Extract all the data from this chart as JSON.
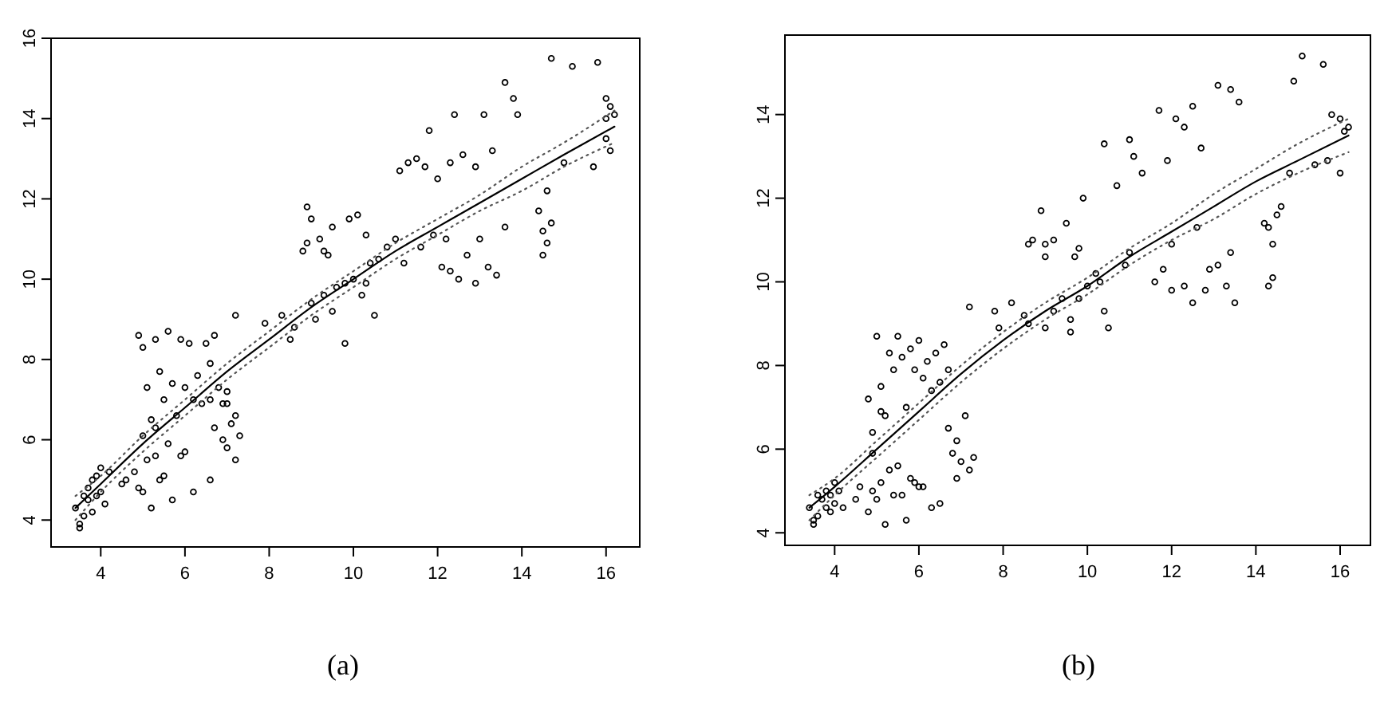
{
  "chart_data": [
    {
      "type": "scatter",
      "xlim": [
        2.82,
        16.8
      ],
      "ylim": [
        3.33,
        16.0
      ],
      "xticks": [
        4,
        6,
        8,
        10,
        12,
        14,
        16
      ],
      "yticks": [
        4,
        6,
        8,
        10,
        12,
        14,
        16
      ],
      "marker": "circle",
      "annotations": [
        "(a)"
      ],
      "series": [
        {
          "color": "#000000",
          "x": [
            3.4,
            3.5,
            3.5,
            3.6,
            3.7,
            3.7,
            3.8,
            3.8,
            3.9,
            3.9,
            4.0,
            4.0,
            4.1,
            4.2,
            3.6,
            4.5,
            4.6,
            4.8,
            4.9,
            5.0,
            5.1,
            5.2,
            5.3,
            5.4,
            5.5,
            5.6,
            5.7,
            5.9,
            6.0,
            6.2,
            6.6,
            4.9,
            5.0,
            5.1,
            5.2,
            5.3,
            5.4,
            5.5,
            5.6,
            5.7,
            5.8,
            5.9,
            6.0,
            6.1,
            6.2,
            6.3,
            6.4,
            6.5,
            6.6,
            6.7,
            6.8,
            6.9,
            7.0,
            5.0,
            5.3,
            6.6,
            6.7,
            6.9,
            7.0,
            7.1,
            7.2,
            7.3,
            7.0,
            7.2,
            7.2,
            7.9,
            8.3,
            8.6,
            8.5,
            8.8,
            8.9,
            9.0,
            9.2,
            9.3,
            9.5,
            8.9,
            9.4,
            9.0,
            9.1,
            9.3,
            9.5,
            9.6,
            9.8,
            10.0,
            10.2,
            10.3,
            10.4,
            9.8,
            10.5,
            9.9,
            10.1,
            10.3,
            10.6,
            10.8,
            11.0,
            11.2,
            11.1,
            11.3,
            11.5,
            11.7,
            11.8,
            12.0,
            11.6,
            11.9,
            12.1,
            12.3,
            12.5,
            12.7,
            13.0,
            13.2,
            13.4,
            13.6,
            12.2,
            12.9,
            12.3,
            12.6,
            12.9,
            13.1,
            13.3,
            13.6,
            13.8,
            13.9,
            12.4,
            14.4,
            14.5,
            14.5,
            14.6,
            14.7,
            14.6,
            14.7,
            15.2,
            15.8,
            16.0,
            16.1,
            16.2,
            16.0,
            16.1,
            15.7,
            15.0,
            16.0
          ],
          "values": [
            4.3,
            3.9,
            3.8,
            4.1,
            4.5,
            4.8,
            5.0,
            4.2,
            5.1,
            4.6,
            5.3,
            4.7,
            4.4,
            5.2,
            4.6,
            4.9,
            5.0,
            5.2,
            4.8,
            4.7,
            5.5,
            4.3,
            5.6,
            5.0,
            5.1,
            5.9,
            4.5,
            5.6,
            5.7,
            4.7,
            5.0,
            8.6,
            8.3,
            7.3,
            6.5,
            8.5,
            7.7,
            7.0,
            8.7,
            7.4,
            6.6,
            8.5,
            7.3,
            8.4,
            7.0,
            7.6,
            6.9,
            8.4,
            7.9,
            8.6,
            7.3,
            6.9,
            7.2,
            6.1,
            6.3,
            7.0,
            6.3,
            6.0,
            5.8,
            6.4,
            5.5,
            6.1,
            6.9,
            6.6,
            9.1,
            8.9,
            9.1,
            8.8,
            8.5,
            10.7,
            11.8,
            11.5,
            11.0,
            10.7,
            11.3,
            10.9,
            10.6,
            9.4,
            9.0,
            9.6,
            9.2,
            9.8,
            9.9,
            10.0,
            9.6,
            9.9,
            10.4,
            8.4,
            9.1,
            11.5,
            11.6,
            11.1,
            10.5,
            10.8,
            11.0,
            10.4,
            12.7,
            12.9,
            13.0,
            12.8,
            13.7,
            12.5,
            10.8,
            11.1,
            10.3,
            10.2,
            10.0,
            10.6,
            11.0,
            10.3,
            10.1,
            11.3,
            11.0,
            9.9,
            12.9,
            13.1,
            12.8,
            14.1,
            13.2,
            14.9,
            14.5,
            14.1,
            14.1,
            11.7,
            11.2,
            10.6,
            10.9,
            11.4,
            12.2,
            15.5,
            15.3,
            15.4,
            14.5,
            14.3,
            14.1,
            14.0,
            13.2,
            12.8,
            12.9,
            13.5
          ]
        },
        {
          "type": "line",
          "color": "#000000",
          "line_style": "solid",
          "marker": "none",
          "x": [
            3.4,
            4,
            5,
            6,
            7,
            8,
            9,
            10,
            11,
            12,
            13,
            14,
            15,
            16.2
          ],
          "values": [
            4.3,
            4.9,
            5.9,
            6.8,
            7.7,
            8.5,
            9.3,
            10.0,
            10.7,
            11.3,
            11.9,
            12.5,
            13.1,
            13.8
          ]
        },
        {
          "type": "line",
          "color": "#555555",
          "line_style": "dotted",
          "marker": "none",
          "x": [
            3.4,
            4,
            5,
            6,
            7,
            8,
            9,
            10,
            11,
            12,
            13,
            14,
            15,
            16.2
          ],
          "values": [
            4.0,
            4.7,
            5.7,
            6.6,
            7.5,
            8.3,
            9.1,
            9.8,
            10.5,
            11.1,
            11.7,
            12.2,
            12.8,
            13.4
          ]
        },
        {
          "type": "line",
          "color": "#555555",
          "line_style": "dotted",
          "marker": "none",
          "x": [
            3.4,
            4,
            5,
            6,
            7,
            8,
            9,
            10,
            11,
            12,
            13,
            14,
            15,
            16.2
          ],
          "values": [
            4.6,
            5.1,
            6.1,
            7.0,
            7.9,
            8.7,
            9.5,
            10.2,
            10.9,
            11.5,
            12.1,
            12.8,
            13.4,
            14.2
          ]
        }
      ]
    },
    {
      "type": "scatter",
      "xlim": [
        2.82,
        16.72
      ],
      "ylim": [
        3.7,
        15.9
      ],
      "xticks": [
        4,
        6,
        8,
        10,
        12,
        14,
        16
      ],
      "yticks": [
        4,
        6,
        8,
        10,
        12,
        14
      ],
      "marker": "circle",
      "annotations": [
        "(b)"
      ],
      "series": [
        {
          "color": "#000000",
          "x": [
            3.4,
            3.5,
            3.5,
            3.6,
            3.7,
            3.8,
            3.8,
            3.9,
            3.9,
            4.0,
            4.0,
            4.1,
            3.6,
            4.2,
            4.5,
            4.6,
            4.8,
            4.9,
            5.0,
            5.1,
            5.2,
            5.3,
            5.4,
            5.5,
            5.6,
            5.8,
            6.0,
            6.1,
            6.3,
            6.5,
            5.7,
            5.9,
            4.8,
            4.9,
            5.0,
            5.1,
            5.2,
            5.3,
            5.4,
            5.5,
            5.6,
            5.7,
            5.8,
            5.9,
            6.0,
            6.1,
            6.2,
            6.3,
            6.4,
            6.5,
            6.6,
            6.7,
            4.9,
            5.1,
            6.7,
            6.8,
            6.9,
            7.0,
            7.1,
            7.2,
            7.3,
            6.9,
            7.2,
            7.8,
            8.2,
            8.5,
            8.6,
            7.9,
            8.6,
            8.7,
            8.9,
            9.0,
            9.2,
            9.5,
            9.7,
            9.8,
            9.0,
            9.0,
            9.2,
            9.4,
            9.6,
            9.8,
            10.0,
            10.2,
            10.4,
            10.5,
            9.6,
            10.3,
            9.9,
            10.4,
            10.7,
            11.0,
            11.1,
            11.3,
            10.9,
            11.0,
            11.7,
            12.1,
            12.3,
            11.9,
            12.5,
            13.1,
            13.4,
            13.6,
            12.7,
            11.6,
            11.8,
            12.0,
            12.3,
            12.5,
            12.8,
            13.1,
            13.3,
            13.4,
            12.0,
            12.6,
            13.5,
            12.9,
            14.2,
            14.3,
            14.4,
            14.5,
            14.4,
            14.3,
            14.6,
            14.9,
            15.1,
            15.6,
            15.8,
            16.0,
            16.1,
            16.2,
            15.7,
            16.0,
            15.4,
            14.8
          ],
          "values": [
            4.6,
            4.3,
            4.2,
            4.4,
            4.8,
            4.6,
            5.0,
            4.9,
            4.5,
            5.2,
            4.7,
            5.0,
            4.9,
            4.6,
            4.8,
            5.1,
            4.5,
            5.0,
            4.8,
            5.2,
            4.2,
            5.5,
            4.9,
            5.6,
            4.9,
            5.3,
            5.1,
            5.1,
            4.6,
            4.7,
            4.3,
            5.2,
            7.2,
            6.4,
            8.7,
            7.5,
            6.8,
            8.3,
            7.9,
            8.7,
            8.2,
            7.0,
            8.4,
            7.9,
            8.6,
            7.7,
            8.1,
            7.4,
            8.3,
            7.6,
            8.5,
            7.9,
            5.9,
            6.9,
            6.5,
            5.9,
            6.2,
            5.7,
            6.8,
            5.5,
            5.8,
            5.3,
            9.4,
            9.3,
            9.5,
            9.2,
            9.0,
            8.9,
            10.9,
            11.0,
            11.7,
            10.9,
            11.0,
            11.4,
            10.6,
            10.8,
            10.6,
            8.9,
            9.3,
            9.6,
            9.1,
            9.6,
            9.9,
            10.2,
            9.3,
            8.9,
            8.8,
            10.0,
            12.0,
            13.3,
            12.3,
            13.4,
            13.0,
            12.6,
            10.4,
            10.7,
            14.1,
            13.9,
            13.7,
            12.9,
            14.2,
            14.7,
            14.6,
            14.3,
            13.2,
            10.0,
            10.3,
            9.8,
            9.9,
            9.5,
            9.8,
            10.4,
            9.9,
            10.7,
            10.9,
            11.3,
            9.5,
            10.3,
            11.4,
            11.3,
            10.9,
            11.6,
            10.1,
            9.9,
            11.8,
            14.8,
            15.4,
            15.2,
            14.0,
            13.9,
            13.6,
            13.7,
            12.9,
            12.6,
            12.8,
            12.6
          ]
        },
        {
          "type": "line",
          "color": "#000000",
          "line_style": "solid",
          "marker": "none",
          "x": [
            3.4,
            4,
            5,
            6,
            7,
            8,
            9,
            10,
            11,
            12,
            13,
            14,
            15,
            16.2
          ],
          "values": [
            4.6,
            5.1,
            6.0,
            6.9,
            7.8,
            8.6,
            9.3,
            9.9,
            10.6,
            11.2,
            11.8,
            12.4,
            12.9,
            13.5
          ]
        },
        {
          "type": "line",
          "color": "#555555",
          "line_style": "dotted",
          "marker": "none",
          "x": [
            3.4,
            4,
            5,
            6,
            7,
            8,
            9,
            10,
            11,
            12,
            13,
            14,
            15,
            16.2
          ],
          "values": [
            4.3,
            4.9,
            5.8,
            6.7,
            7.6,
            8.4,
            9.1,
            9.7,
            10.4,
            11.0,
            11.5,
            12.1,
            12.6,
            13.1
          ]
        },
        {
          "type": "line",
          "color": "#555555",
          "line_style": "dotted",
          "marker": "none",
          "x": [
            3.4,
            4,
            5,
            6,
            7,
            8,
            9,
            10,
            11,
            12,
            13,
            14,
            15,
            16.2
          ],
          "values": [
            4.9,
            5.3,
            6.2,
            7.1,
            8.0,
            8.8,
            9.5,
            10.1,
            10.8,
            11.4,
            12.1,
            12.7,
            13.3,
            13.9
          ]
        }
      ]
    }
  ]
}
